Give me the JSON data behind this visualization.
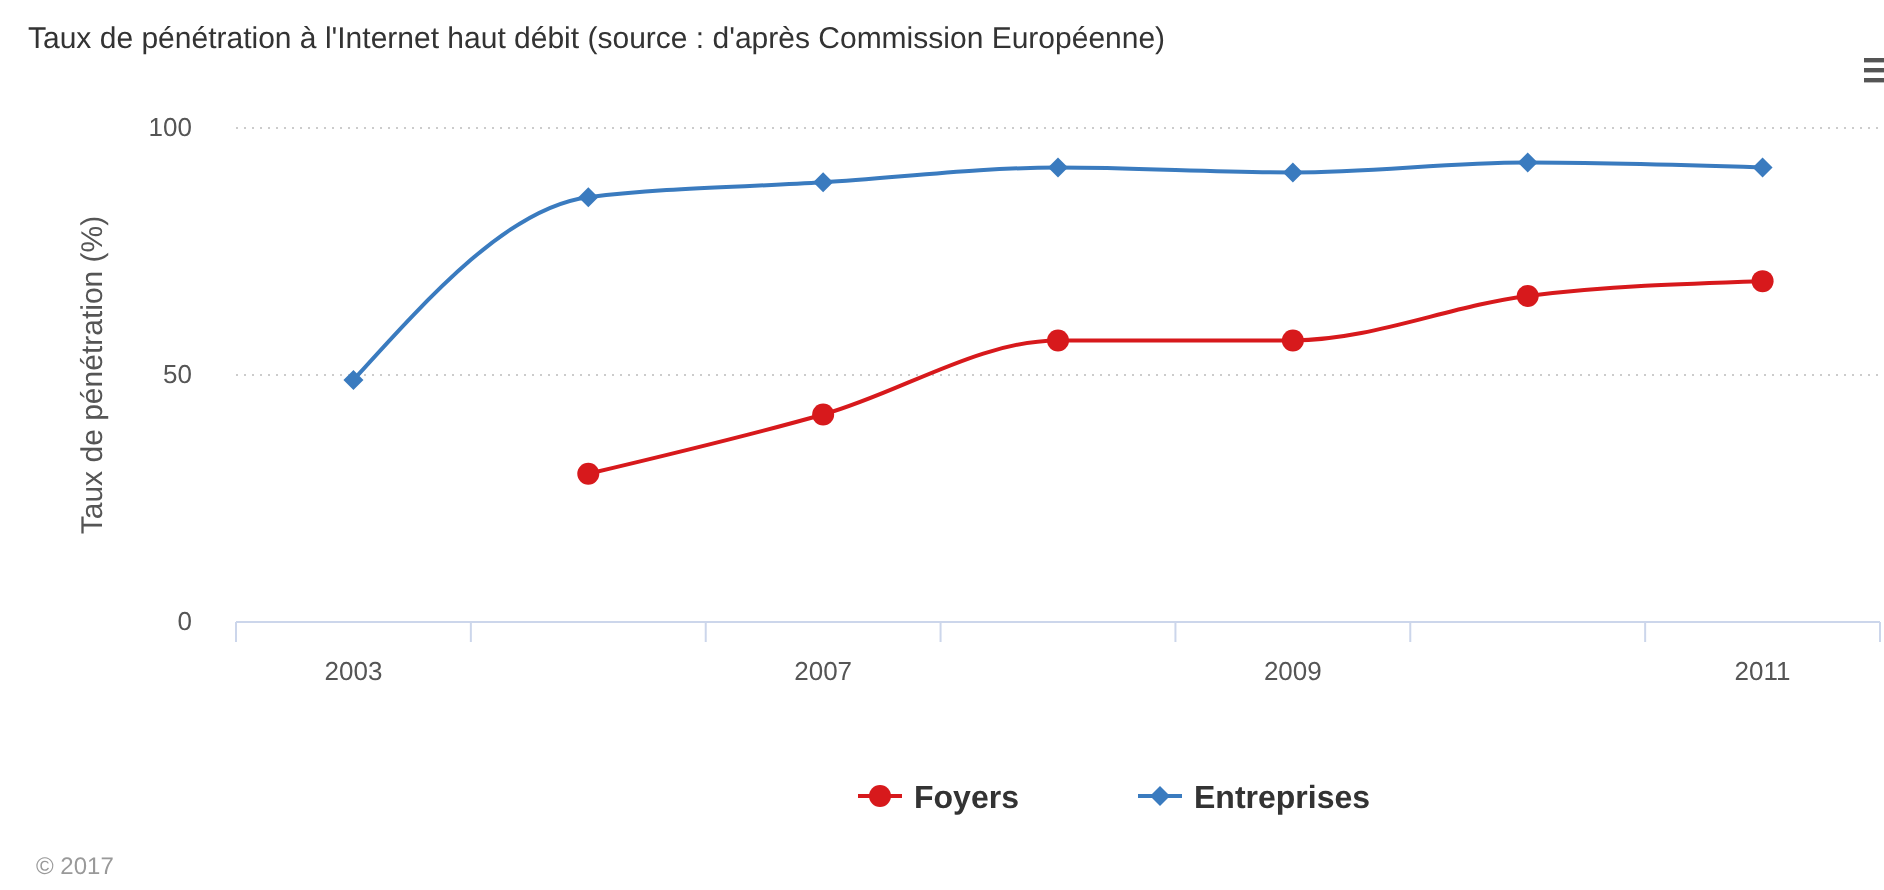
{
  "chart_data": {
    "type": "line",
    "title": "Taux de pénétration à l'Internet haut débit (source : d'après Commission Européenne)",
    "ylabel": "Taux de pénétration (%)",
    "categories": [
      "2003",
      null,
      "2007",
      null,
      "2009",
      null,
      "2011"
    ],
    "series": [
      {
        "name": "Foyers",
        "color": "#d7191c",
        "marker": "circle",
        "values": [
          null,
          30,
          42,
          57,
          57,
          66,
          69
        ]
      },
      {
        "name": "Entreprises",
        "color": "#3a7bbf",
        "marker": "diamond",
        "values": [
          49,
          86,
          89,
          92,
          91,
          93,
          92
        ]
      }
    ],
    "ylim": [
      0,
      100
    ],
    "yticks": [
      0,
      50,
      100
    ],
    "grid": "y",
    "legend": "bottom",
    "annotations": [
      "© 2017"
    ]
  }
}
